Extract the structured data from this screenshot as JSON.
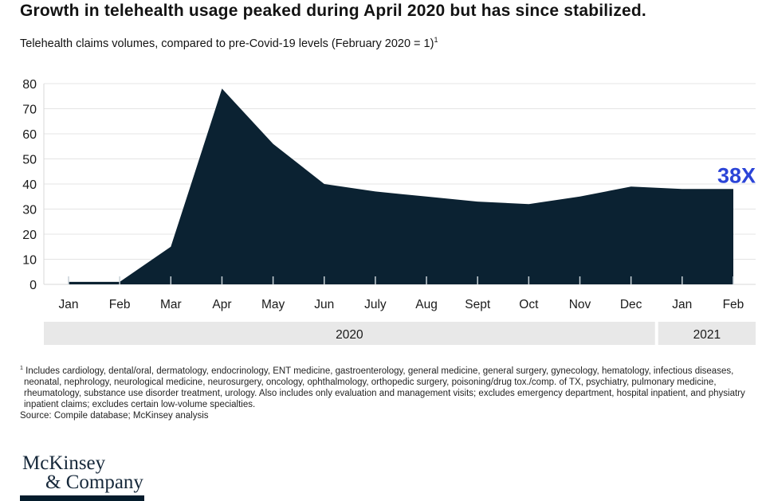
{
  "chart_data": {
    "type": "area",
    "title": "Growth in telehealth usage peaked during April 2020 but has since stabilized.",
    "subtitle": "Telehealth claims volumes, compared to pre-Covid-19 levels (February 2020 = 1)",
    "categories": [
      "Jan",
      "Feb",
      "Mar",
      "Apr",
      "May",
      "Jun",
      "July",
      "Aug",
      "Sept",
      "Oct",
      "Nov",
      "Dec",
      "Jan",
      "Feb"
    ],
    "values": [
      1,
      1,
      15,
      78,
      56,
      40,
      37,
      35,
      33,
      32,
      35,
      39,
      38,
      38
    ],
    "ylim": [
      0,
      80
    ],
    "y_ticks": [
      0,
      10,
      20,
      30,
      40,
      50,
      60,
      70,
      80
    ],
    "xlabel": "",
    "ylabel": "",
    "grid": true,
    "legend": false,
    "year_bands": [
      {
        "label": "2020",
        "from_index": 0,
        "to_index": 11
      },
      {
        "label": "2021",
        "from_index": 12,
        "to_index": 13
      }
    ],
    "annotation": {
      "text": "38X",
      "at_index": 13
    }
  },
  "footnote": {
    "marker": "1",
    "text": "Includes cardiology, dental/oral, dermatology, endocrinology, ENT medicine, gastroenterology, general medicine, general surgery, gynecology, hematology, infectious diseases, neonatal, nephrology, neurological medicine, neurosurgery, oncology, ophthalmology, orthopedic surgery, poisoning/drug tox./comp. of TX, psychiatry, pulmonary medicine, rheumatology, substance use disorder treatment, urology. Also includes only evaluation and management visits; excludes emergency department, hospital inpatient, and physiatry inpatient claims; excludes certain low-volume specialties."
  },
  "source": "Source: Compile database; McKinsey analysis",
  "logo": {
    "line1": "McKinsey",
    "line2": "& Company"
  },
  "colors": {
    "area": "#0b2232",
    "annotation_blue": "#2b44d7",
    "grid": "#e4e4e4",
    "baseline": "#d8d8d8",
    "tick": "#c8d1d7",
    "band_bg": "#e8e8e8",
    "text": "#1a1a1a",
    "logo_navy": "#16283a"
  }
}
